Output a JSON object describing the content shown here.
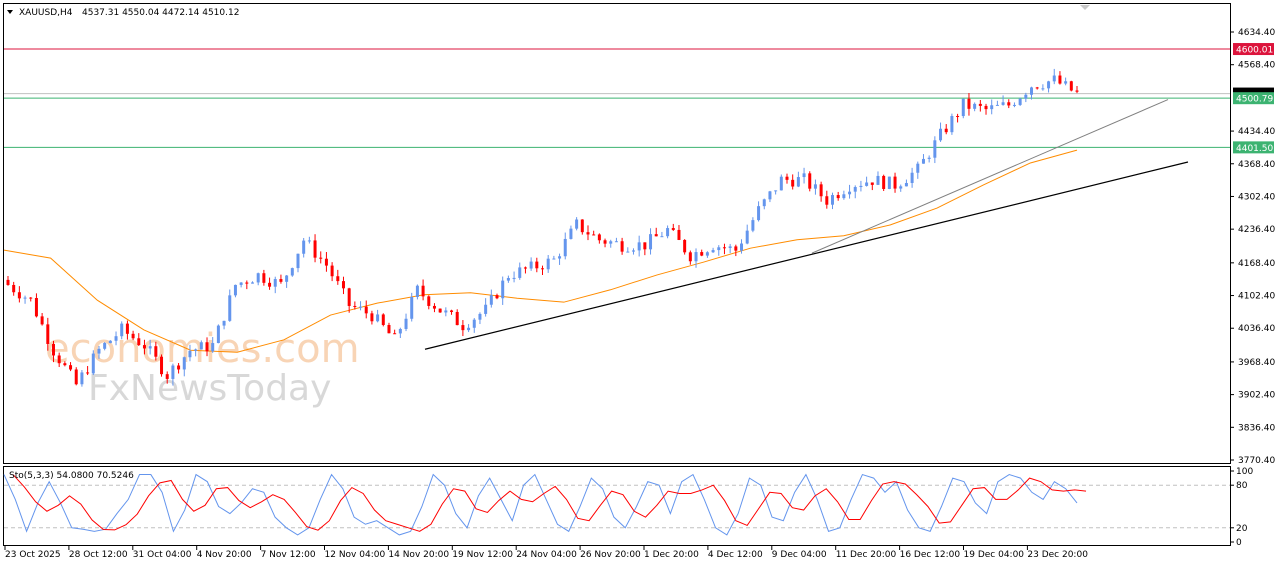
{
  "header": {
    "symbol": "XAUUSD,H4",
    "ohlc": "4537.31 4550.04 4472.14 4510.12"
  },
  "watermark": {
    "line1": "economies.com",
    "line2": "FxNewsToday"
  },
  "colors": {
    "bull": "#6495ed",
    "bear": "#ff0000",
    "ma": "#ff8c00",
    "stoch_main": "#6495ed",
    "stoch_signal": "#ff0000",
    "resistance": "#dc143c",
    "support": "#3cb371"
  },
  "chart_data": [
    {
      "type": "candlestick",
      "symbol": "XAUUSD",
      "timeframe": "H4",
      "ylim": [
        3770.4,
        4634.4
      ],
      "y_ticks": [
        "4634.40",
        "4568.40",
        "4434.40",
        "4368.40",
        "4302.40",
        "4236.40",
        "4168.40",
        "4102.40",
        "4036.40",
        "3968.40",
        "3902.40",
        "3836.40",
        "3770.40"
      ],
      "x_ticks": [
        "23 Oct 2025",
        "28 Oct 12:00",
        "31 Oct 04:00",
        "4 Nov 20:00",
        "7 Nov 12:00",
        "12 Nov 04:00",
        "14 Nov 20:00",
        "19 Nov 12:00",
        "24 Nov 04:00",
        "26 Nov 20:00",
        "1 Dec 20:00",
        "4 Dec 12:00",
        "9 Dec 04:00",
        "11 Dec 20:00",
        "16 Dec 12:00",
        "19 Dec 04:00",
        "23 Dec 20:00"
      ],
      "closes": [
        4124,
        4093,
        3992,
        3922,
        3992,
        4033,
        4002,
        3942,
        3992,
        4002,
        4124,
        4144,
        4124,
        4215,
        4164,
        4083,
        4063,
        4013,
        4113,
        4073,
        4043,
        4073,
        4144,
        4158,
        4174,
        4245,
        4215,
        4205,
        4205,
        4235,
        4184,
        4205,
        4194,
        4275,
        4336,
        4336,
        4295,
        4326,
        4336,
        4326,
        4356,
        4426,
        4487,
        4477,
        4487,
        4527,
        4537,
        4510
      ],
      "moving_average": [
        4194,
        4178,
        4093,
        4033,
        3992,
        3988,
        4013,
        4063,
        4087,
        4104,
        4108,
        4097,
        4089,
        4114,
        4144,
        4170,
        4198,
        4215,
        4223,
        4245,
        4279,
        4326,
        4370,
        4396
      ],
      "horizontal_levels": [
        {
          "label": "4600.01",
          "value": 4600.01,
          "color": "#dc143c"
        },
        {
          "label": "4500.79",
          "value": 4500.79,
          "color": "#3cb371"
        },
        {
          "label": "4401.50",
          "value": 4401.5,
          "color": "#3cb371"
        }
      ],
      "current_price": 4510.12,
      "trendlines": [
        {
          "from": [
            "14 Nov 20:00",
            3994
          ],
          "to": [
            4372
          ],
          "color": "#000000"
        },
        {
          "from": [
            "9 Dec 04:00",
            4188
          ],
          "to": [
            4498
          ],
          "color": "#808080"
        }
      ]
    },
    {
      "type": "line",
      "indicator": "Sto(5,3,3)",
      "label": "Sto(5,3,3) 54.0800 70.5246",
      "values_text": [
        "54.0800",
        "70.5246"
      ],
      "ylim": [
        0,
        100
      ],
      "y_ticks": [
        "100",
        "80",
        "20",
        "0"
      ],
      "levels": [
        20,
        80
      ],
      "k_values": [
        95,
        60,
        15,
        55,
        85,
        55,
        20,
        18,
        15,
        18,
        40,
        60,
        95,
        95,
        70,
        15,
        45,
        95,
        85,
        50,
        40,
        55,
        75,
        70,
        35,
        20,
        10,
        20,
        60,
        95,
        75,
        35,
        25,
        30,
        20,
        10,
        15,
        50,
        95,
        80,
        40,
        20,
        65,
        90,
        60,
        30,
        80,
        95,
        60,
        25,
        15,
        50,
        90,
        75,
        35,
        20,
        50,
        85,
        80,
        40,
        85,
        95,
        60,
        20,
        10,
        40,
        90,
        80,
        35,
        30,
        70,
        95,
        60,
        15,
        20,
        60,
        95,
        90,
        70,
        85,
        45,
        20,
        15,
        50,
        90,
        85,
        55,
        40,
        85,
        95,
        90,
        70,
        60,
        85,
        75,
        55
      ]
    }
  ]
}
